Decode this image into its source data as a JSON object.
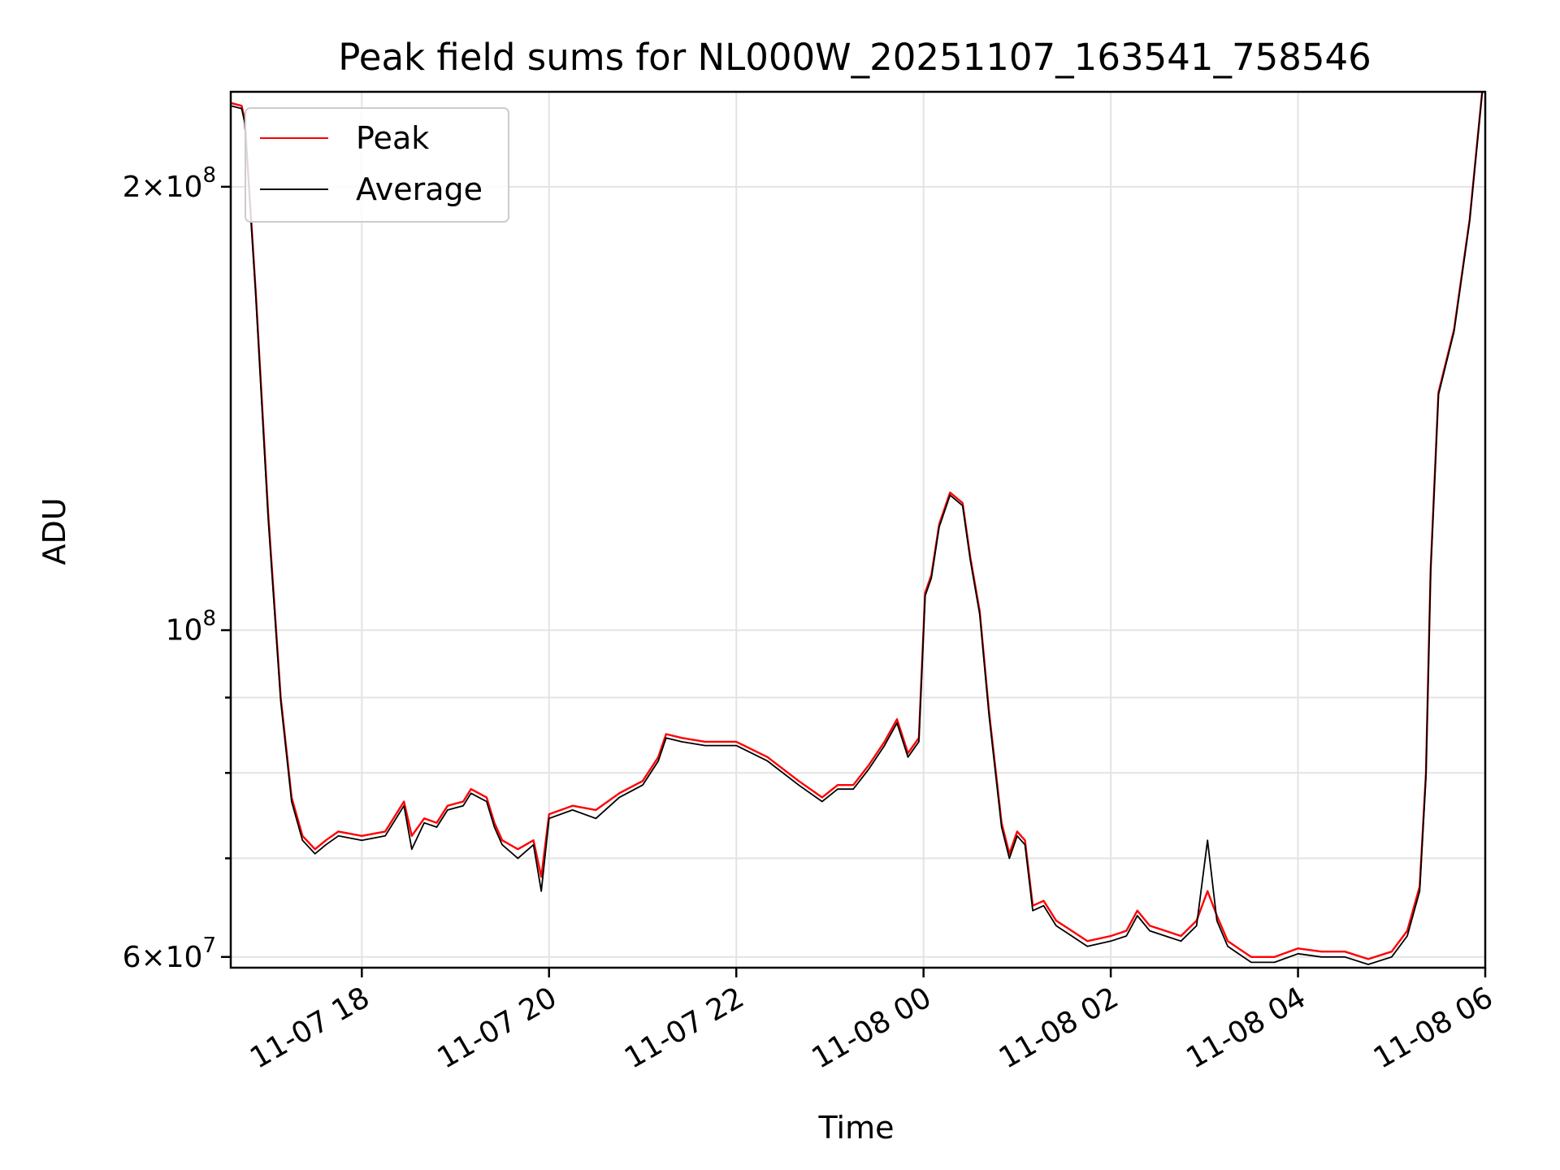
{
  "chart_data": {
    "type": "line",
    "title": "Peak field sums for NL000W_20251107_163541_758546",
    "xlabel": "Time",
    "ylabel": "ADU",
    "yscale": "log",
    "xlim": [
      "2025-11-07 16:36",
      "2025-11-08 06:00"
    ],
    "ylim": [
      59000000,
      232000000
    ],
    "grid": true,
    "legend": {
      "placement": "top-left"
    },
    "x_ticks": [
      {
        "value": "2025-11-07 18:00",
        "label": "11-07 18"
      },
      {
        "value": "2025-11-07 20:00",
        "label": "11-07 20"
      },
      {
        "value": "2025-11-07 22:00",
        "label": "11-07 22"
      },
      {
        "value": "2025-11-08 00:00",
        "label": "11-08 00"
      },
      {
        "value": "2025-11-08 02:00",
        "label": "11-08 02"
      },
      {
        "value": "2025-11-08 04:00",
        "label": "11-08 04"
      },
      {
        "value": "2025-11-08 06:00",
        "label": "11-08 06"
      }
    ],
    "y_major_ticks": [
      {
        "value": 60000000,
        "mantissa": "6",
        "base": "10",
        "exp": "7"
      },
      {
        "value": 100000000,
        "mantissa": "",
        "base": "10",
        "exp": "8"
      },
      {
        "value": 200000000,
        "mantissa": "2",
        "base": "10",
        "exp": "8"
      }
    ],
    "y_minor_ticks": [
      70000000,
      80000000,
      90000000
    ],
    "series": [
      {
        "name": "Peak",
        "color": "#ff0000",
        "points": [
          [
            "2025-11-07 16:36",
            228000000
          ],
          [
            "2025-11-07 16:43",
            227000000
          ],
          [
            "2025-11-07 16:45",
            222000000
          ],
          [
            "2025-11-07 16:52",
            170000000
          ],
          [
            "2025-11-07 17:00",
            120000000
          ],
          [
            "2025-11-07 17:08",
            90000000
          ],
          [
            "2025-11-07 17:15",
            77000000
          ],
          [
            "2025-11-07 17:22",
            72500000
          ],
          [
            "2025-11-07 17:30",
            71000000
          ],
          [
            "2025-11-07 17:37",
            72000000
          ],
          [
            "2025-11-07 17:45",
            73000000
          ],
          [
            "2025-11-07 18:00",
            72500000
          ],
          [
            "2025-11-07 18:15",
            73000000
          ],
          [
            "2025-11-07 18:27",
            76500000
          ],
          [
            "2025-11-07 18:32",
            72500000
          ],
          [
            "2025-11-07 18:40",
            74500000
          ],
          [
            "2025-11-07 18:48",
            74000000
          ],
          [
            "2025-11-07 18:55",
            76000000
          ],
          [
            "2025-11-07 19:05",
            76500000
          ],
          [
            "2025-11-07 19:10",
            78000000
          ],
          [
            "2025-11-07 19:20",
            77000000
          ],
          [
            "2025-11-07 19:25",
            74000000
          ],
          [
            "2025-11-07 19:30",
            72000000
          ],
          [
            "2025-11-07 19:40",
            71000000
          ],
          [
            "2025-11-07 19:50",
            72000000
          ],
          [
            "2025-11-07 19:55",
            68000000
          ],
          [
            "2025-11-07 20:00",
            75000000
          ],
          [
            "2025-11-07 20:15",
            76000000
          ],
          [
            "2025-11-07 20:30",
            75500000
          ],
          [
            "2025-11-07 20:45",
            77500000
          ],
          [
            "2025-11-07 21:00",
            79000000
          ],
          [
            "2025-11-07 21:10",
            82000000
          ],
          [
            "2025-11-07 21:15",
            85000000
          ],
          [
            "2025-11-07 21:25",
            84500000
          ],
          [
            "2025-11-07 21:40",
            84000000
          ],
          [
            "2025-11-07 22:00",
            84000000
          ],
          [
            "2025-11-07 22:20",
            82000000
          ],
          [
            "2025-11-07 22:40",
            79000000
          ],
          [
            "2025-11-07 22:55",
            77000000
          ],
          [
            "2025-11-07 23:05",
            78500000
          ],
          [
            "2025-11-07 23:15",
            78500000
          ],
          [
            "2025-11-07 23:25",
            81000000
          ],
          [
            "2025-11-07 23:35",
            84000000
          ],
          [
            "2025-11-07 23:43",
            87000000
          ],
          [
            "2025-11-07 23:50",
            82500000
          ],
          [
            "2025-11-07 23:57",
            84500000
          ],
          [
            "2025-11-08 00:01",
            106000000
          ],
          [
            "2025-11-08 00:05",
            109000000
          ],
          [
            "2025-11-08 00:10",
            118000000
          ],
          [
            "2025-11-08 00:17",
            124000000
          ],
          [
            "2025-11-08 00:25",
            122000000
          ],
          [
            "2025-11-08 00:30",
            112000000
          ],
          [
            "2025-11-08 00:36",
            103000000
          ],
          [
            "2025-11-08 00:42",
            88000000
          ],
          [
            "2025-11-08 00:50",
            74000000
          ],
          [
            "2025-11-08 00:55",
            70500000
          ],
          [
            "2025-11-08 01:00",
            73000000
          ],
          [
            "2025-11-08 01:05",
            72000000
          ],
          [
            "2025-11-08 01:10",
            65000000
          ],
          [
            "2025-11-08 01:17",
            65500000
          ],
          [
            "2025-11-08 01:25",
            63500000
          ],
          [
            "2025-11-08 01:35",
            62500000
          ],
          [
            "2025-11-08 01:45",
            61500000
          ],
          [
            "2025-11-08 02:00",
            62000000
          ],
          [
            "2025-11-08 02:10",
            62500000
          ],
          [
            "2025-11-08 02:17",
            64500000
          ],
          [
            "2025-11-08 02:25",
            63000000
          ],
          [
            "2025-11-08 02:35",
            62500000
          ],
          [
            "2025-11-08 02:45",
            62000000
          ],
          [
            "2025-11-08 02:55",
            63500000
          ],
          [
            "2025-11-08 03:02",
            66500000
          ],
          [
            "2025-11-08 03:08",
            64000000
          ],
          [
            "2025-11-08 03:15",
            61500000
          ],
          [
            "2025-11-08 03:30",
            60000000
          ],
          [
            "2025-11-08 03:45",
            60000000
          ],
          [
            "2025-11-08 04:00",
            60800000
          ],
          [
            "2025-11-08 04:15",
            60500000
          ],
          [
            "2025-11-08 04:30",
            60500000
          ],
          [
            "2025-11-08 04:45",
            59800000
          ],
          [
            "2025-11-08 05:00",
            60500000
          ],
          [
            "2025-11-08 05:10",
            62500000
          ],
          [
            "2025-11-08 05:18",
            67000000
          ],
          [
            "2025-11-08 05:22",
            80000000
          ],
          [
            "2025-11-08 05:25",
            110000000
          ],
          [
            "2025-11-08 05:30",
            145000000
          ],
          [
            "2025-11-08 05:40",
            160000000
          ],
          [
            "2025-11-08 05:50",
            190000000
          ],
          [
            "2025-11-08 05:58",
            232000000
          ]
        ]
      },
      {
        "name": "Average",
        "color": "#000000",
        "points": [
          [
            "2025-11-07 16:36",
            227000000
          ],
          [
            "2025-11-07 16:43",
            226000000
          ],
          [
            "2025-11-07 16:45",
            221000000
          ],
          [
            "2025-11-07 16:52",
            169000000
          ],
          [
            "2025-11-07 17:00",
            119000000
          ],
          [
            "2025-11-07 17:08",
            89500000
          ],
          [
            "2025-11-07 17:15",
            76500000
          ],
          [
            "2025-11-07 17:22",
            72000000
          ],
          [
            "2025-11-07 17:30",
            70500000
          ],
          [
            "2025-11-07 17:37",
            71500000
          ],
          [
            "2025-11-07 17:45",
            72500000
          ],
          [
            "2025-11-07 18:00",
            72000000
          ],
          [
            "2025-11-07 18:15",
            72500000
          ],
          [
            "2025-11-07 18:27",
            76000000
          ],
          [
            "2025-11-07 18:32",
            71000000
          ],
          [
            "2025-11-07 18:40",
            74000000
          ],
          [
            "2025-11-07 18:48",
            73500000
          ],
          [
            "2025-11-07 18:55",
            75500000
          ],
          [
            "2025-11-07 19:05",
            76000000
          ],
          [
            "2025-11-07 19:10",
            77500000
          ],
          [
            "2025-11-07 19:20",
            76500000
          ],
          [
            "2025-11-07 19:25",
            73500000
          ],
          [
            "2025-11-07 19:30",
            71500000
          ],
          [
            "2025-11-07 19:40",
            70000000
          ],
          [
            "2025-11-07 19:50",
            71500000
          ],
          [
            "2025-11-07 19:55",
            66500000
          ],
          [
            "2025-11-07 20:00",
            74500000
          ],
          [
            "2025-11-07 20:15",
            75500000
          ],
          [
            "2025-11-07 20:30",
            74500000
          ],
          [
            "2025-11-07 20:45",
            77000000
          ],
          [
            "2025-11-07 21:00",
            78500000
          ],
          [
            "2025-11-07 21:10",
            81500000
          ],
          [
            "2025-11-07 21:15",
            84500000
          ],
          [
            "2025-11-07 21:25",
            84000000
          ],
          [
            "2025-11-07 21:40",
            83500000
          ],
          [
            "2025-11-07 22:00",
            83500000
          ],
          [
            "2025-11-07 22:20",
            81500000
          ],
          [
            "2025-11-07 22:40",
            78500000
          ],
          [
            "2025-11-07 22:55",
            76500000
          ],
          [
            "2025-11-07 23:05",
            78000000
          ],
          [
            "2025-11-07 23:15",
            78000000
          ],
          [
            "2025-11-07 23:25",
            80500000
          ],
          [
            "2025-11-07 23:35",
            83500000
          ],
          [
            "2025-11-07 23:43",
            86500000
          ],
          [
            "2025-11-07 23:50",
            82000000
          ],
          [
            "2025-11-07 23:57",
            84000000
          ],
          [
            "2025-11-08 00:01",
            105500000
          ],
          [
            "2025-11-08 00:05",
            108500000
          ],
          [
            "2025-11-08 00:10",
            117500000
          ],
          [
            "2025-11-08 00:17",
            123500000
          ],
          [
            "2025-11-08 00:25",
            121500000
          ],
          [
            "2025-11-08 00:30",
            111500000
          ],
          [
            "2025-11-08 00:36",
            102500000
          ],
          [
            "2025-11-08 00:42",
            87500000
          ],
          [
            "2025-11-08 00:50",
            73500000
          ],
          [
            "2025-11-08 00:55",
            70000000
          ],
          [
            "2025-11-08 01:00",
            72500000
          ],
          [
            "2025-11-08 01:05",
            71500000
          ],
          [
            "2025-11-08 01:10",
            64500000
          ],
          [
            "2025-11-08 01:17",
            65000000
          ],
          [
            "2025-11-08 01:25",
            63000000
          ],
          [
            "2025-11-08 01:35",
            62000000
          ],
          [
            "2025-11-08 01:45",
            61000000
          ],
          [
            "2025-11-08 02:00",
            61500000
          ],
          [
            "2025-11-08 02:10",
            62000000
          ],
          [
            "2025-11-08 02:17",
            64000000
          ],
          [
            "2025-11-08 02:25",
            62500000
          ],
          [
            "2025-11-08 02:35",
            62000000
          ],
          [
            "2025-11-08 02:45",
            61500000
          ],
          [
            "2025-11-08 02:55",
            63000000
          ],
          [
            "2025-11-08 03:02",
            72000000
          ],
          [
            "2025-11-08 03:08",
            63500000
          ],
          [
            "2025-11-08 03:15",
            61000000
          ],
          [
            "2025-11-08 03:30",
            59500000
          ],
          [
            "2025-11-08 03:45",
            59500000
          ],
          [
            "2025-11-08 04:00",
            60300000
          ],
          [
            "2025-11-08 04:15",
            60000000
          ],
          [
            "2025-11-08 04:30",
            60000000
          ],
          [
            "2025-11-08 04:45",
            59300000
          ],
          [
            "2025-11-08 05:00",
            60000000
          ],
          [
            "2025-11-08 05:10",
            62000000
          ],
          [
            "2025-11-08 05:18",
            66500000
          ],
          [
            "2025-11-08 05:22",
            79500000
          ],
          [
            "2025-11-08 05:25",
            109500000
          ],
          [
            "2025-11-08 05:30",
            144500000
          ],
          [
            "2025-11-08 05:40",
            159500000
          ],
          [
            "2025-11-08 05:50",
            189500000
          ],
          [
            "2025-11-08 05:58",
            231500000
          ]
        ]
      }
    ]
  }
}
